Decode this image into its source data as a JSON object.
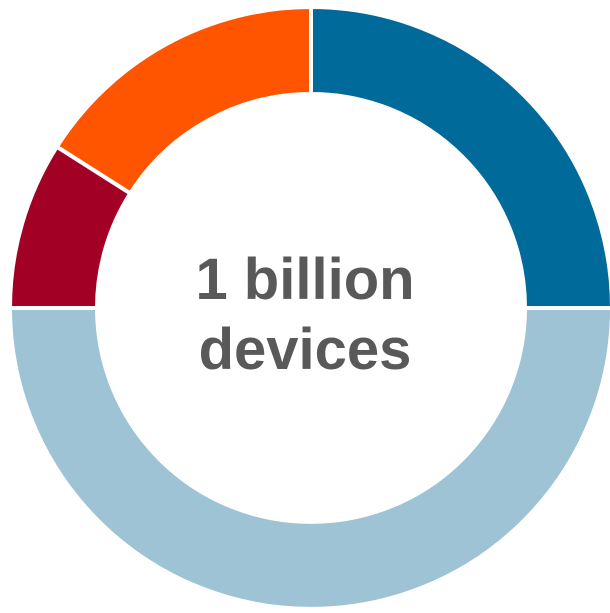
{
  "chart_data": {
    "type": "pie",
    "style": "donut",
    "center_text": [
      "1 billion",
      "devices"
    ],
    "legend": "none",
    "slices": [
      {
        "value": 25,
        "color": "#006A9A"
      },
      {
        "value": 50,
        "color": "#9DC3D5"
      },
      {
        "value": 9,
        "color": "#A30025"
      },
      {
        "value": 16,
        "color": "#FF5500"
      }
    ]
  }
}
